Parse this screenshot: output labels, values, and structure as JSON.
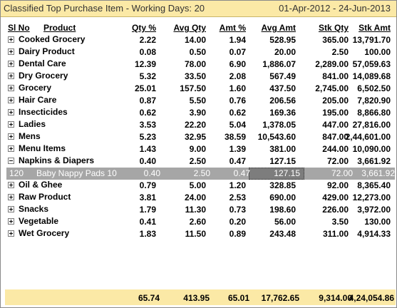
{
  "window": {
    "title": "Classified Top Purchase Item - Working Days: 20",
    "date_range": "01-Apr-2012 - 24-Jun-2013"
  },
  "columns": {
    "sl_no": "Sl No",
    "product": "Product",
    "qty_pct": "Qty %",
    "avg_qty": "Avg Qty",
    "amt_pct": "Amt %",
    "avg_amt": "Avg Amt",
    "stk_qty": "Stk Qty",
    "stk_amt": "Stk Amt"
  },
  "rows": [
    {
      "name": "Cooked Grocery",
      "qty_pct": "2.22",
      "avg_qty": "14.00",
      "amt_pct": "1.94",
      "avg_amt": "528.95",
      "stk_qty": "365.00",
      "stk_amt": "13,791.70"
    },
    {
      "name": "Dairy Product",
      "qty_pct": "0.08",
      "avg_qty": "0.50",
      "amt_pct": "0.07",
      "avg_amt": "20.00",
      "stk_qty": "2.50",
      "stk_amt": "100.00"
    },
    {
      "name": "Dental Care",
      "qty_pct": "12.39",
      "avg_qty": "78.00",
      "amt_pct": "6.90",
      "avg_amt": "1,886.07",
      "stk_qty": "2,289.00",
      "stk_amt": "57,059.63"
    },
    {
      "name": "Dry Grocery",
      "qty_pct": "5.32",
      "avg_qty": "33.50",
      "amt_pct": "2.08",
      "avg_amt": "567.49",
      "stk_qty": "841.00",
      "stk_amt": "14,089.68"
    },
    {
      "name": "Grocery",
      "qty_pct": "25.01",
      "avg_qty": "157.50",
      "amt_pct": "1.60",
      "avg_amt": "437.50",
      "stk_qty": "2,745.00",
      "stk_amt": "6,502.50"
    },
    {
      "name": "Hair Care",
      "qty_pct": "0.87",
      "avg_qty": "5.50",
      "amt_pct": "0.76",
      "avg_amt": "206.56",
      "stk_qty": "205.00",
      "stk_amt": "7,820.90"
    },
    {
      "name": "Insecticides",
      "qty_pct": "0.62",
      "avg_qty": "3.90",
      "amt_pct": "0.62",
      "avg_amt": "169.36",
      "stk_qty": "195.00",
      "stk_amt": "8,866.80"
    },
    {
      "name": "Ladies",
      "qty_pct": "3.53",
      "avg_qty": "22.20",
      "amt_pct": "5.04",
      "avg_amt": "1,378.05",
      "stk_qty": "447.00",
      "stk_amt": "27,816.00"
    },
    {
      "name": "Mens",
      "qty_pct": "5.23",
      "avg_qty": "32.95",
      "amt_pct": "38.59",
      "avg_amt": "10,543.60",
      "stk_qty": "847.00",
      "stk_amt": "2,44,601.00"
    },
    {
      "name": "Menu Items",
      "qty_pct": "1.43",
      "avg_qty": "9.00",
      "amt_pct": "1.39",
      "avg_amt": "381.00",
      "stk_qty": "244.00",
      "stk_amt": "10,090.00"
    },
    {
      "name": "Napkins & Diapers",
      "qty_pct": "0.40",
      "avg_qty": "2.50",
      "amt_pct": "0.47",
      "avg_amt": "127.15",
      "stk_qty": "72.00",
      "stk_amt": "3,661.92"
    },
    {
      "name": "Oil & Ghee",
      "qty_pct": "0.79",
      "avg_qty": "5.00",
      "amt_pct": "1.20",
      "avg_amt": "328.85",
      "stk_qty": "92.00",
      "stk_amt": "8,365.40"
    },
    {
      "name": "Raw Product",
      "qty_pct": "3.81",
      "avg_qty": "24.00",
      "amt_pct": "2.53",
      "avg_amt": "690.00",
      "stk_qty": "429.00",
      "stk_amt": "12,273.00"
    },
    {
      "name": "Snacks",
      "qty_pct": "1.79",
      "avg_qty": "11.30",
      "amt_pct": "0.73",
      "avg_amt": "198.60",
      "stk_qty": "226.00",
      "stk_amt": "3,972.00"
    },
    {
      "name": "Vegetable",
      "qty_pct": "0.41",
      "avg_qty": "2.60",
      "amt_pct": "0.20",
      "avg_amt": "56.00",
      "stk_qty": "3.50",
      "stk_amt": "130.00"
    },
    {
      "name": "Wet Grocery",
      "qty_pct": "1.83",
      "avg_qty": "11.50",
      "amt_pct": "0.89",
      "avg_amt": "243.48",
      "stk_qty": "311.00",
      "stk_amt": "4,914.33"
    }
  ],
  "expanded_item": {
    "sl_no": "120",
    "name": "Baby Nappy Pads 10",
    "qty_pct": "0.40",
    "avg_qty": "2.50",
    "amt_pct": "0.47",
    "avg_amt": "127.15",
    "stk_qty": "72.00",
    "stk_amt": "3,661.92"
  },
  "totals": {
    "qty_pct": "65.74",
    "avg_qty": "413.95",
    "amt_pct": "65.01",
    "avg_amt": "17,762.65",
    "stk_qty": "9,314.00",
    "stk_amt": "4,24,054.86"
  }
}
